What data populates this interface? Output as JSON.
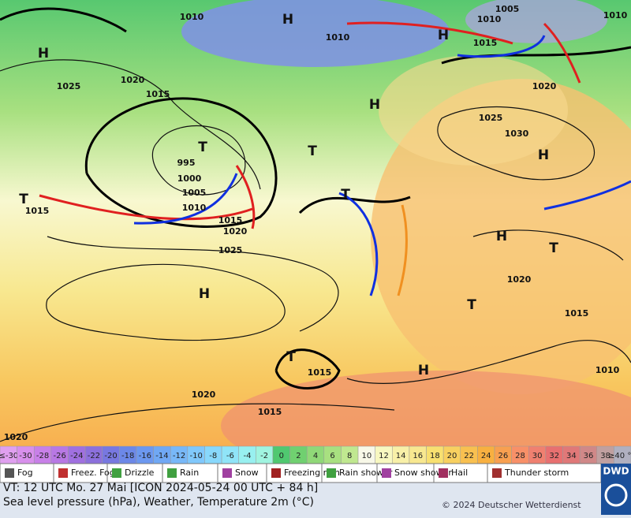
{
  "map": {
    "pressure_labels": [
      "1010",
      "1010",
      "1010",
      "1005",
      "1015",
      "1010",
      "1020",
      "1025",
      "1015",
      "1020",
      "1025",
      "1030",
      "995",
      "1000",
      "1005",
      "1010",
      "1015",
      "1015",
      "1020",
      "1025",
      "1020",
      "1015",
      "1010",
      "1015",
      "1020",
      "1015",
      "1020"
    ],
    "centers": [
      "H",
      "H",
      "H",
      "H",
      "H",
      "H",
      "H",
      "H",
      "T",
      "T",
      "T",
      "T",
      "T",
      "T",
      "T"
    ]
  },
  "temperature_scale": {
    "labels": [
      "≤-30",
      "-30",
      "-28",
      "-26",
      "-24",
      "-22",
      "-20",
      "-18",
      "-16",
      "-14",
      "-12",
      "-10",
      "-8",
      "-6",
      "-4",
      "-2",
      "0",
      "2",
      "4",
      "6",
      "8",
      "10",
      "12",
      "14",
      "16",
      "18",
      "20",
      "22",
      "24",
      "26",
      "28",
      "30",
      "32",
      "34",
      "36",
      "38",
      "≥40 °C"
    ],
    "colors": [
      "#e0a0f0",
      "#d890ec",
      "#c880e8",
      "#b878e4",
      "#a070e0",
      "#8c70dc",
      "#7878e0",
      "#6c88e8",
      "#6c98f0",
      "#70a8f4",
      "#78b8f8",
      "#80c8fc",
      "#88d8fc",
      "#90e4f8",
      "#98f0f0",
      "#a0f4e0",
      "#50c870",
      "#70d070",
      "#90d878",
      "#a8e080",
      "#c0e890",
      "#f8f8e8",
      "#f8f8c0",
      "#f8f0a8",
      "#f8e890",
      "#f8e070",
      "#f8d060",
      "#f8c050",
      "#f8b040",
      "#f8a050",
      "#f89068",
      "#f08070",
      "#e87070",
      "#e07878",
      "#d08888",
      "#c0a0a0",
      "#b0b0c0"
    ]
  },
  "weather_legend": [
    "Fog",
    "Freez. Fog",
    "Drizzle",
    "Rain",
    "Snow",
    "Freezing rain",
    "Rain shower",
    "Snow shower",
    "Hail",
    "Thunder storm"
  ],
  "footer": {
    "valid_time": "VT: 12 UTC Mo.  27 Mai [ICON 2024-05-24  00 UTC + 84 h]",
    "description": "Sea level pressure (hPa), Weather, Temperature 2m (°C)",
    "copyright": "© 2024 Deutscher Wetterdienst",
    "logo": "DWD"
  }
}
